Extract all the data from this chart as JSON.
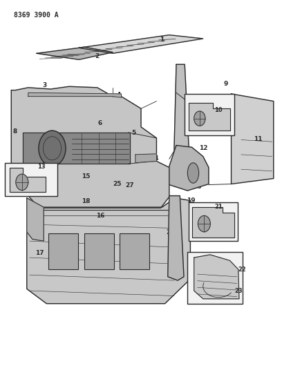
{
  "title": "8369 3900 A",
  "bg_color": "#ffffff",
  "line_color": "#2a2a2a",
  "figsize": [
    4.08,
    5.33
  ],
  "dpi": 100
}
